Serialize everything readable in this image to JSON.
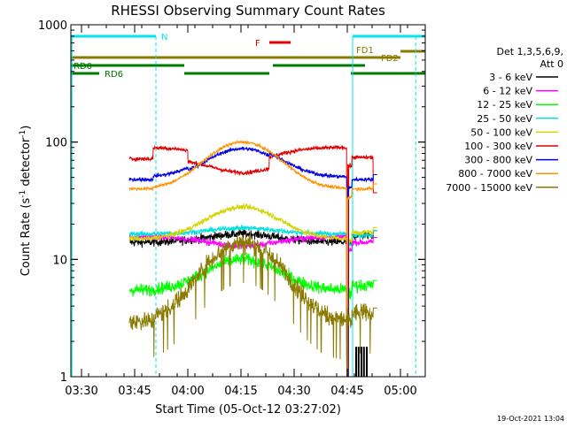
{
  "chart_data": {
    "type": "line",
    "title": "RHESSI Observing Summary Count Rates",
    "xlabel": "Start Time (05-Oct-12 03:27:02)",
    "ylabel_main": "Count Rate (s",
    "ylabel_sup": "-1",
    "ylabel_mid": " detector",
    "ylabel_sup2": "-1",
    "ylabel_end": ")",
    "y_scale": "log",
    "ylim": [
      1,
      1000
    ],
    "xlim_min": [
      0,
      100
    ],
    "x_ticks": [
      {
        "label": "03:30",
        "t": 3
      },
      {
        "label": "03:45",
        "t": 18
      },
      {
        "label": "04:00",
        "t": 33
      },
      {
        "label": "04:15",
        "t": 48
      },
      {
        "label": "04:30",
        "t": 63
      },
      {
        "label": "04:45",
        "t": 78
      },
      {
        "label": "05:00",
        "t": 93
      }
    ],
    "y_ticks": [
      {
        "label": "1",
        "v": 1
      },
      {
        "label": "10",
        "v": 10
      },
      {
        "label": "100",
        "v": 100
      },
      {
        "label": "1000",
        "v": 1000
      }
    ],
    "legend_header": [
      "Det 1,3,5,6,9,",
      "Att 0"
    ],
    "series": [
      {
        "name": "3 - 6 keV",
        "color": "#000000",
        "pre": 14.0,
        "peak": 16.5,
        "post": 16.0,
        "noise": 0.08
      },
      {
        "name": "6 - 12 keV",
        "color": "#ff00ff",
        "pre": 15.5,
        "peak": 13.0,
        "post": 14.0,
        "noise": 0.06
      },
      {
        "name": "12 - 25 keV",
        "color": "#00ff00",
        "pre": 5.5,
        "peak": 10.0,
        "post": 6.0,
        "noise": 0.12
      },
      {
        "name": "25 - 50 keV",
        "color": "#00e0e0",
        "pre": 16.5,
        "peak": 18.5,
        "post": 16.0,
        "noise": 0.05
      },
      {
        "name": "50 - 100 keV",
        "color": "#d4d400",
        "pre": 15.0,
        "peak": 28.0,
        "post": 17.0,
        "noise": 0.05
      },
      {
        "name": "100 - 300 keV",
        "color": "#e00000",
        "pre": 72.0,
        "peak": 55.0,
        "post": 74.0,
        "noise": 0.04
      },
      {
        "name": "300 - 800 keV",
        "color": "#0000e0",
        "pre": 48.0,
        "peak": 88.0,
        "post": 48.0,
        "noise": 0.035
      },
      {
        "name": "800 - 7000 keV",
        "color": "#ff9000",
        "pre": 40.0,
        "peak": 100.0,
        "post": 40.0,
        "noise": 0.03
      },
      {
        "name": "7000 - 15000 keV",
        "color": "#8b7a00",
        "pre": 3.0,
        "peak": 14.0,
        "post": 3.5,
        "noise": 0.18
      }
    ],
    "flags": {
      "N_label": "N",
      "F_label": "F",
      "FD1_label": "FD1",
      "FD2_label": "FD2",
      "RD0_label": "RD0",
      "RD6_label": "RD6"
    },
    "timestamp": "19-Oct-2021 13:04"
  }
}
